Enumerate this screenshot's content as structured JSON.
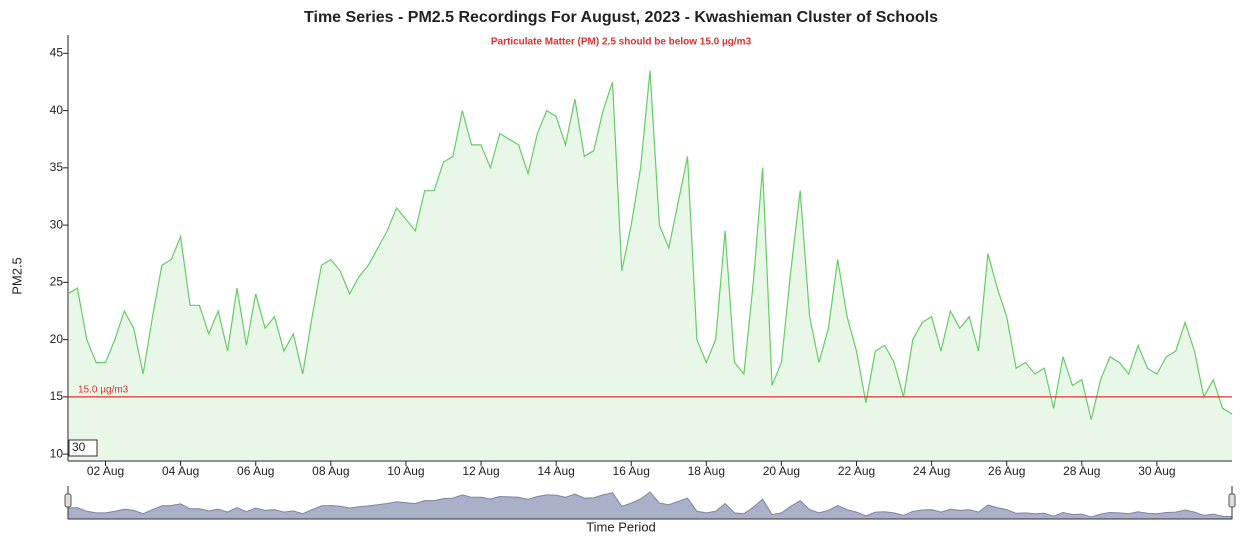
{
  "chart_data": {
    "type": "line",
    "title": "Time Series - PM2.5 Recordings For August, 2023 - Kwashieman Cluster of Schools",
    "subtitle": "Particulate Matter (PM) 2.5 should be below 15.0 µg/m3",
    "y_label": "PM2.5",
    "x_label": "Time Period",
    "roll_period": 30,
    "threshold": {
      "value": 15,
      "label": "15.0 µg/m3",
      "color": "#e03030"
    },
    "grid": false,
    "x": [
      1,
      1.25,
      1.5,
      1.75,
      2,
      2.25,
      2.5,
      2.75,
      3,
      3.25,
      3.5,
      3.75,
      4,
      4.25,
      4.5,
      4.75,
      5,
      5.25,
      5.5,
      5.75,
      6,
      6.25,
      6.5,
      6.75,
      7,
      7.25,
      7.5,
      7.75,
      8,
      8.25,
      8.5,
      8.75,
      9,
      9.25,
      9.5,
      9.75,
      10,
      10.25,
      10.5,
      10.75,
      11,
      11.25,
      11.5,
      11.75,
      12,
      12.25,
      12.5,
      12.75,
      13,
      13.25,
      13.5,
      13.75,
      14,
      14.25,
      14.5,
      14.75,
      15,
      15.25,
      15.5,
      15.75,
      16,
      16.25,
      16.5,
      16.75,
      17,
      17.25,
      17.5,
      17.75,
      18,
      18.25,
      18.5,
      18.75,
      19,
      19.25,
      19.5,
      19.75,
      20,
      20.25,
      20.5,
      20.75,
      21,
      21.25,
      21.5,
      21.75,
      22,
      22.25,
      22.5,
      22.75,
      23,
      23.25,
      23.5,
      23.75,
      24,
      24.25,
      24.5,
      24.75,
      25,
      25.25,
      25.5,
      25.75,
      26,
      26.25,
      26.5,
      26.75,
      27,
      27.25,
      27.5,
      27.75,
      28,
      28.25,
      28.5,
      28.75,
      29,
      29.25,
      29.5,
      29.75,
      30,
      30.25,
      30.5,
      30.75,
      31,
      31.25,
      31.5,
      31.75,
      32
    ],
    "series": [
      {
        "name": "PM2.5",
        "color": "#66cc66",
        "values": [
          24,
          24.5,
          20,
          18,
          18,
          20,
          22.5,
          21,
          17,
          22,
          26.5,
          27,
          29,
          23,
          23,
          20.5,
          22.5,
          19,
          24.5,
          19.5,
          24,
          21,
          22,
          19,
          20.5,
          17,
          22,
          26.5,
          27,
          26,
          24,
          25.5,
          26.5,
          28,
          29.5,
          31.5,
          30.5,
          29.5,
          33,
          33,
          35.5,
          36,
          40,
          37,
          37,
          35,
          38,
          37.5,
          37,
          34.5,
          38,
          40,
          39.5,
          37,
          41,
          36,
          36.5,
          40,
          42.5,
          26,
          30,
          35,
          43.5,
          30,
          28,
          32,
          36,
          20,
          18,
          20,
          29.5,
          18,
          17,
          25,
          35,
          16,
          18,
          26,
          33,
          22,
          18,
          21,
          27,
          22,
          19,
          14.5,
          19,
          19.5,
          18,
          15,
          20,
          21.5,
          22,
          19,
          22.5,
          21,
          22,
          19,
          27.5,
          24.5,
          22,
          17.5,
          18,
          17,
          17.5,
          14,
          18.5,
          16,
          16.5,
          13,
          16.5,
          18.5,
          18,
          17,
          19.5,
          17.5,
          17,
          18.5,
          19,
          21.5,
          19,
          15,
          16.5,
          14,
          13.5
        ]
      }
    ],
    "xlim": [
      1,
      32
    ],
    "xticks": [
      {
        "value": 2,
        "label": "02 Aug"
      },
      {
        "value": 4,
        "label": "04 Aug"
      },
      {
        "value": 6,
        "label": "06 Aug"
      },
      {
        "value": 8,
        "label": "08 Aug"
      },
      {
        "value": 10,
        "label": "10 Aug"
      },
      {
        "value": 12,
        "label": "12 Aug"
      },
      {
        "value": 14,
        "label": "14 Aug"
      },
      {
        "value": 16,
        "label": "16 Aug"
      },
      {
        "value": 18,
        "label": "18 Aug"
      },
      {
        "value": 20,
        "label": "20 Aug"
      },
      {
        "value": 22,
        "label": "22 Aug"
      },
      {
        "value": 24,
        "label": "24 Aug"
      },
      {
        "value": 26,
        "label": "26 Aug"
      },
      {
        "value": 28,
        "label": "28 Aug"
      },
      {
        "value": 30,
        "label": "30 Aug"
      }
    ],
    "ylim": [
      9.4,
      46.6
    ],
    "yticks": [
      10,
      15,
      20,
      25,
      30,
      35,
      40,
      45
    ]
  }
}
